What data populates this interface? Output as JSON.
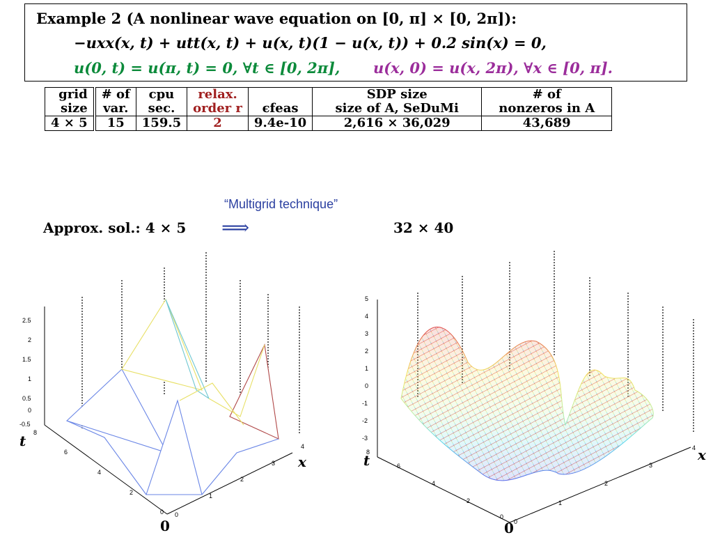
{
  "example": {
    "title": "Example 2 (A nonlinear wave equation on [0, π] × [0, 2π]):",
    "equation": "−uxx(x, t) + utt(x, t) + u(x, t)(1 − u(x, t)) + 0.2 sin(x) = 0,",
    "bc_green": "u(0, t) = u(π, t) = 0,  ∀t ∈ [0, 2π],",
    "bc_purple": "u(x, 0) = u(x, 2π),  ∀x ∈ [0, π]."
  },
  "table": {
    "headers_top": [
      "grid",
      "# of",
      "cpu",
      "relax.",
      "",
      "SDP size",
      "# of"
    ],
    "headers_bottom": [
      "size",
      "var.",
      "sec.",
      "order r",
      "ϵfeas",
      "size of A, SeDuMi",
      "nonzeros in A"
    ],
    "row": [
      "4 × 5",
      "15",
      "159.5",
      "2",
      "9.4e-10",
      "2,616 × 36,029",
      "43,689"
    ]
  },
  "multigrid_label": "“Multigrid technique”",
  "approx": {
    "label": "Approx. sol.:  4 × 5",
    "arrow": "⟹",
    "target": "32 × 40"
  },
  "colors": {
    "green": "#0b8a3a",
    "purple": "#9b2d9b",
    "red": "#a01f1f",
    "blue_note": "#2a3fa0"
  },
  "plot_left": {
    "z_ticks": [
      "2.5",
      "2",
      "1.5",
      "1",
      "0.5",
      "0",
      "-0.5"
    ],
    "t_ticks": [
      "8",
      "6",
      "4",
      "2",
      "0"
    ],
    "x_ticks": [
      "0",
      "1",
      "2",
      "3",
      "4"
    ],
    "t_label": "t",
    "x_label": "x",
    "origin_label": "0"
  },
  "plot_right": {
    "z_ticks": [
      "5",
      "4",
      "3",
      "2",
      "1",
      "0",
      "-1",
      "-2",
      "-3"
    ],
    "t_ticks": [
      "8",
      "6",
      "4",
      "2",
      "0"
    ],
    "x_ticks": [
      "0",
      "1",
      "2",
      "3",
      "4"
    ],
    "t_label": "t",
    "x_label": "x",
    "origin_label": "0"
  }
}
